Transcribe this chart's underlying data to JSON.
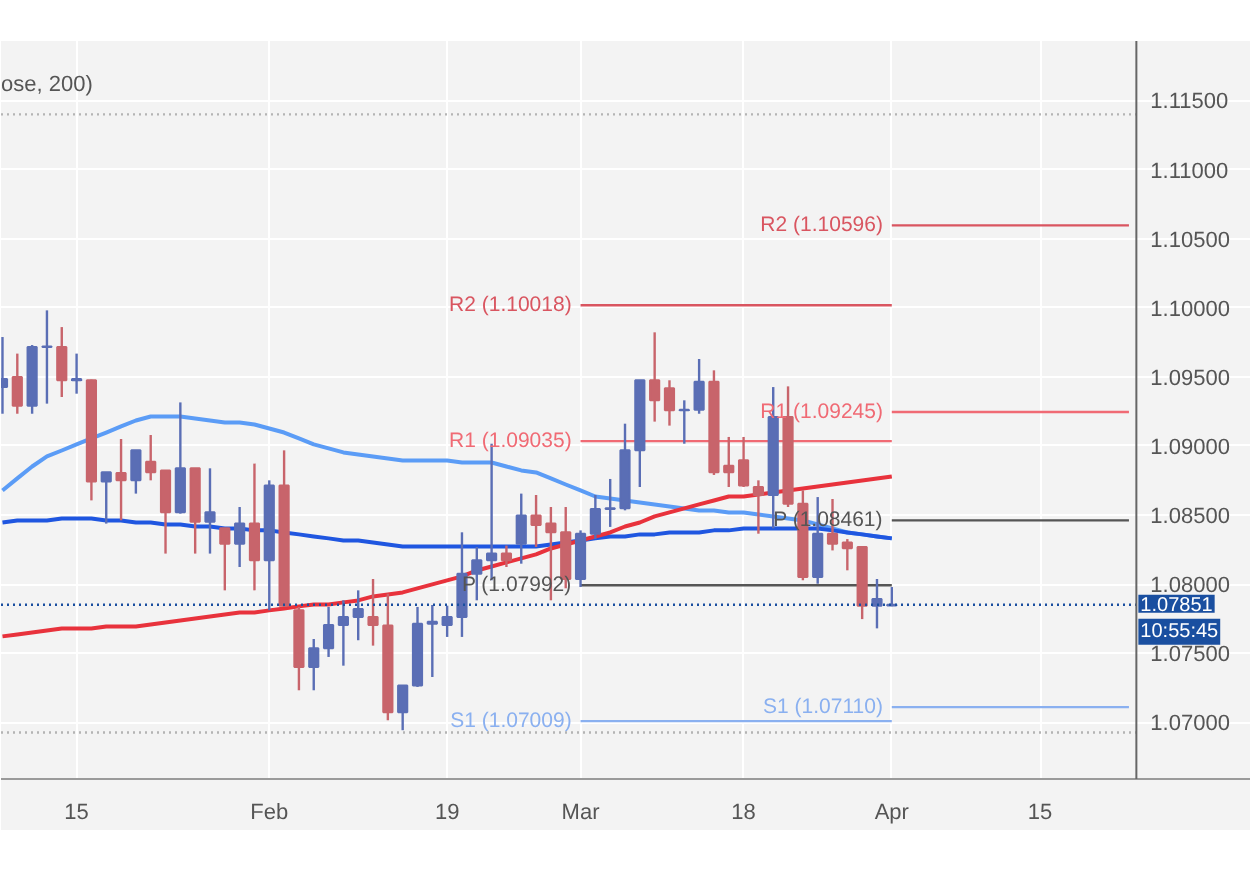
{
  "chart_data": {
    "type": "candlestick",
    "categories": [
      null,
      null,
      null,
      null,
      null,
      "15",
      null,
      null,
      null,
      null,
      null,
      null,
      null,
      null,
      null,
      null,
      null,
      null,
      "Feb",
      null,
      null,
      null,
      null,
      null,
      null,
      null,
      null,
      null,
      null,
      null,
      "19",
      null,
      null,
      null,
      null,
      null,
      null,
      null,
      null,
      "Mar",
      null,
      null,
      null,
      null,
      null,
      null,
      null,
      null,
      null,
      null,
      "18",
      null,
      null,
      null,
      null,
      null,
      null,
      null,
      null,
      null,
      "Apr",
      null,
      null,
      null,
      null,
      null,
      null,
      null,
      null,
      null,
      "15",
      null,
      null,
      null,
      null,
      null,
      null
    ],
    "ohlc": [
      [
        1.09426,
        1.09788,
        1.09233,
        1.09484
      ],
      [
        1.09499,
        1.09668,
        1.09233,
        1.09291
      ],
      [
        1.09291,
        1.0973,
        1.09233,
        1.09716
      ],
      [
        1.09716,
        1.09981,
        1.09306,
        1.0972
      ],
      [
        1.09716,
        1.0986,
        1.09354,
        1.09475
      ],
      [
        1.09475,
        1.09668,
        1.09378,
        1.09484
      ],
      [
        1.09475,
        1.0948,
        1.08606,
        1.08742
      ],
      [
        1.08742,
        1.08809,
        1.08438,
        1.08809
      ],
      [
        1.08804,
        1.0905,
        1.08462,
        1.08751
      ],
      [
        1.08751,
        1.08968,
        1.08655,
        1.08968
      ],
      [
        1.08886,
        1.09079,
        1.08751,
        1.08809
      ],
      [
        1.08823,
        1.08823,
        1.08221,
        1.0852
      ],
      [
        1.0852,
        1.09315,
        1.0851,
        1.08838
      ],
      [
        1.08838,
        1.08838,
        1.08221,
        1.08452
      ],
      [
        1.08452,
        1.08838,
        1.08221,
        1.0852
      ],
      [
        1.08404,
        1.08404,
        1.07955,
        1.08293
      ],
      [
        1.08293,
        1.08558,
        1.08124,
        1.08438
      ],
      [
        1.08438,
        1.08872,
        1.07955,
        1.08172
      ],
      [
        1.08172,
        1.08751,
        1.07811,
        1.08713
      ],
      [
        1.08713,
        1.08968,
        1.07835,
        1.07844
      ],
      [
        1.07811,
        1.07835,
        1.07232,
        1.07401
      ],
      [
        1.07401,
        1.07603,
        1.07232,
        1.07536
      ],
      [
        1.07536,
        1.07835,
        1.07473,
        1.07705
      ],
      [
        1.07705,
        1.07883,
        1.0741,
        1.07762
      ],
      [
        1.07762,
        1.07955,
        1.07594,
        1.0782
      ],
      [
        1.07762,
        1.08037,
        1.07555,
        1.07705
      ],
      [
        1.077,
        1.07931,
        1.07015,
        1.07073
      ],
      [
        1.07073,
        1.07266,
        1.06943,
        1.07266
      ],
      [
        1.07266,
        1.07835,
        1.07256,
        1.07714
      ],
      [
        1.07714,
        1.07849,
        1.07328,
        1.07728
      ],
      [
        1.07705,
        1.07844,
        1.07618,
        1.07762
      ],
      [
        1.07762,
        1.08375,
        1.07618,
        1.08076
      ],
      [
        1.08076,
        1.08269,
        1.07883,
        1.08172
      ],
      [
        1.08172,
        1.09016,
        1.08028,
        1.08221
      ],
      [
        1.08221,
        1.08279,
        1.08124,
        1.08172
      ],
      [
        1.08293,
        1.08655,
        1.08148,
        1.08496
      ],
      [
        1.08496,
        1.08645,
        1.08269,
        1.08428
      ],
      [
        1.08438,
        1.08558,
        1.07883,
        1.08375
      ],
      [
        1.08375,
        1.08558,
        1.0797,
        1.08037
      ],
      [
        1.08037,
        1.08389,
        1.07979,
        1.08365
      ],
      [
        1.08365,
        1.08645,
        1.08327,
        1.08544
      ],
      [
        1.08544,
        1.08761,
        1.08414,
        1.08549
      ],
      [
        1.08549,
        1.09161,
        1.08534,
        1.08968
      ],
      [
        1.08968,
        1.09475,
        1.08703,
        1.09475
      ],
      [
        1.09475,
        1.09822,
        1.09176,
        1.0933
      ],
      [
        1.09417,
        1.09475,
        1.09147,
        1.09258
      ],
      [
        1.09258,
        1.0933,
        1.09016,
        1.09262
      ],
      [
        1.09262,
        1.09629,
        1.09233,
        1.09465
      ],
      [
        1.09465,
        1.09547,
        1.0879,
        1.08809
      ],
      [
        1.08857,
        1.09065,
        1.08703,
        1.08809
      ],
      [
        1.08896,
        1.09065,
        1.08703,
        1.08713
      ],
      [
        1.08703,
        1.08751,
        1.08365,
        1.08645
      ],
      [
        1.08645,
        1.09426,
        1.08404,
        1.09209
      ],
      [
        1.09209,
        1.09431,
        1.08558,
        1.08582
      ],
      [
        1.08582,
        1.08679,
        1.08028,
        1.08052
      ],
      [
        1.08052,
        1.0863,
        1.08003,
        1.08365
      ],
      [
        1.08365,
        1.08616,
        1.08244,
        1.08293
      ],
      [
        1.08302,
        1.08326,
        1.081,
        1.08259
      ],
      [
        1.08268,
        1.08268,
        1.07747,
        1.07844
      ],
      [
        1.07844,
        1.08037,
        1.0768,
        1.07892
      ],
      [
        1.07845,
        1.07979,
        1.0784,
        1.07851
      ],
      null,
      null,
      null,
      null,
      null,
      null,
      null,
      null,
      null,
      null,
      null,
      null,
      null,
      null,
      null,
      null
    ],
    "series": [
      {
        "type": "line",
        "color": "#5b9cf6",
        "values": [
          1.08678,
          1.08765,
          1.08851,
          1.08924,
          1.08967,
          1.09011,
          1.09054,
          1.09097,
          1.09141,
          1.09184,
          1.09213,
          1.09213,
          1.09213,
          1.09199,
          1.09184,
          1.0917,
          1.0917,
          1.09155,
          1.09126,
          1.09097,
          1.09054,
          1.09011,
          1.08982,
          1.08953,
          1.08938,
          1.08924,
          1.08909,
          1.08895,
          1.08895,
          1.08895,
          1.08895,
          1.0888,
          1.0888,
          1.0888,
          1.08851,
          1.08823,
          1.08808,
          1.08765,
          1.08721,
          1.08678,
          1.08634,
          1.0862,
          1.08605,
          1.08591,
          1.08577,
          1.08562,
          1.08548,
          1.08533,
          1.08533,
          1.08519,
          1.08519,
          1.08504,
          1.0849,
          1.08475,
          1.08461,
          1.08432,
          1.08403,
          1.08374,
          1.0836,
          1.08345,
          1.08331,
          null,
          null,
          null,
          null,
          null,
          null,
          null,
          null,
          null,
          null,
          null,
          null,
          null,
          null,
          null,
          null
        ]
      },
      {
        "type": "line",
        "color": "#1f56e0",
        "values": [
          1.08446,
          1.08461,
          1.08461,
          1.08461,
          1.08475,
          1.08475,
          1.08475,
          1.08461,
          1.08461,
          1.08446,
          1.08446,
          1.08432,
          1.08432,
          1.08417,
          1.08417,
          1.08403,
          1.08403,
          1.08389,
          1.08389,
          1.08374,
          1.0836,
          1.08345,
          1.08331,
          1.08316,
          1.08316,
          1.08302,
          1.08287,
          1.08273,
          1.08273,
          1.08273,
          1.08273,
          1.08273,
          1.08273,
          1.08273,
          1.08273,
          1.08273,
          1.08273,
          1.08287,
          1.08302,
          1.08316,
          1.08331,
          1.08345,
          1.08345,
          1.0836,
          1.0836,
          1.08374,
          1.08374,
          1.08374,
          1.08389,
          1.08389,
          1.08403,
          1.08403,
          1.08403,
          1.08403,
          1.08403,
          1.08403,
          1.08389,
          1.08374,
          1.0836,
          1.08345,
          1.08331,
          null,
          null,
          null,
          null,
          null,
          null,
          null,
          null,
          null,
          null,
          null,
          null,
          null,
          null,
          null,
          null
        ]
      },
      {
        "type": "line",
        "color": "#e8323c",
        "values": [
          1.07622,
          1.07636,
          1.0765,
          1.07665,
          1.07679,
          1.07679,
          1.07679,
          1.07694,
          1.07694,
          1.07694,
          1.07708,
          1.07723,
          1.07737,
          1.07752,
          1.07766,
          1.07781,
          1.07795,
          1.07795,
          1.0781,
          1.07824,
          1.07839,
          1.07853,
          1.07853,
          1.07868,
          1.07882,
          1.07911,
          1.07925,
          1.0794,
          1.07969,
          1.07998,
          1.08027,
          1.08056,
          1.08099,
          1.08128,
          1.08157,
          1.08186,
          1.08215,
          1.08258,
          1.08287,
          1.08316,
          1.08345,
          1.08374,
          1.08417,
          1.08446,
          1.0849,
          1.08519,
          1.08548,
          1.08577,
          1.08605,
          1.08634,
          1.08634,
          1.08649,
          1.08663,
          1.08678,
          1.08692,
          1.08707,
          1.08721,
          1.08736,
          1.0875,
          1.08765,
          1.08779,
          null,
          null,
          null,
          null,
          null,
          null,
          null,
          null,
          null,
          null,
          null,
          null,
          null,
          null,
          null,
          null
        ]
      },
      {
        "type": "line",
        "name": "R2 (1.10018)",
        "color": "#d95560",
        "values": [
          null,
          null,
          null,
          null,
          null,
          null,
          null,
          null,
          null,
          null,
          null,
          null,
          null,
          null,
          null,
          null,
          null,
          null,
          null,
          null,
          null,
          null,
          null,
          null,
          null,
          null,
          null,
          null,
          null,
          null,
          null,
          null,
          null,
          null,
          null,
          null,
          null,
          null,
          null,
          1.10018,
          1.10018,
          1.10018,
          1.10018,
          1.10018,
          1.10018,
          1.10018,
          1.10018,
          1.10018,
          1.10018,
          1.10018,
          1.10018,
          1.10018,
          1.10018,
          1.10018,
          1.10018,
          1.10018,
          1.10018,
          1.10018,
          1.10018,
          1.10018,
          1.10018,
          null,
          null,
          null,
          null,
          null,
          null,
          null,
          null,
          null,
          null,
          null,
          null,
          null,
          null,
          null,
          null
        ]
      },
      {
        "type": "line",
        "name": "R1 (1.09035)",
        "color": "#f06a74",
        "values": [
          null,
          null,
          null,
          null,
          null,
          null,
          null,
          null,
          null,
          null,
          null,
          null,
          null,
          null,
          null,
          null,
          null,
          null,
          null,
          null,
          null,
          null,
          null,
          null,
          null,
          null,
          null,
          null,
          null,
          null,
          null,
          null,
          null,
          null,
          null,
          null,
          null,
          null,
          null,
          1.09035,
          1.09035,
          1.09035,
          1.09035,
          1.09035,
          1.09035,
          1.09035,
          1.09035,
          1.09035,
          1.09035,
          1.09035,
          1.09035,
          1.09035,
          1.09035,
          1.09035,
          1.09035,
          1.09035,
          1.09035,
          1.09035,
          1.09035,
          1.09035,
          1.09035,
          null,
          null,
          null,
          null,
          null,
          null,
          null,
          null,
          null,
          null,
          null,
          null,
          null,
          null,
          null,
          null
        ]
      },
      {
        "type": "line",
        "name": "P (1.07992)",
        "color": "#555555",
        "values": [
          null,
          null,
          null,
          null,
          null,
          null,
          null,
          null,
          null,
          null,
          null,
          null,
          null,
          null,
          null,
          null,
          null,
          null,
          null,
          null,
          null,
          null,
          null,
          null,
          null,
          null,
          null,
          null,
          null,
          null,
          null,
          null,
          null,
          null,
          null,
          null,
          null,
          null,
          null,
          1.07992,
          1.07992,
          1.07992,
          1.07992,
          1.07992,
          1.07992,
          1.07992,
          1.07992,
          1.07992,
          1.07992,
          1.07992,
          1.07992,
          1.07992,
          1.07992,
          1.07992,
          1.07992,
          1.07992,
          1.07992,
          1.07992,
          1.07992,
          1.07992,
          1.07992,
          null,
          null,
          null,
          null,
          null,
          null,
          null,
          null,
          null,
          null,
          null,
          null,
          null,
          null,
          null,
          null
        ]
      },
      {
        "type": "line",
        "name": "S1 (1.07009)",
        "color": "#8ab0f0",
        "values": [
          null,
          null,
          null,
          null,
          null,
          null,
          null,
          null,
          null,
          null,
          null,
          null,
          null,
          null,
          null,
          null,
          null,
          null,
          null,
          null,
          null,
          null,
          null,
          null,
          null,
          null,
          null,
          null,
          null,
          null,
          null,
          null,
          null,
          null,
          null,
          null,
          null,
          null,
          null,
          1.07009,
          1.07009,
          1.07009,
          1.07009,
          1.07009,
          1.07009,
          1.07009,
          1.07009,
          1.07009,
          1.07009,
          1.07009,
          1.07009,
          1.07009,
          1.07009,
          1.07009,
          1.07009,
          1.07009,
          1.07009,
          1.07009,
          1.07009,
          1.07009,
          1.07009,
          null,
          null,
          null,
          null,
          null,
          null,
          null,
          null,
          null,
          null,
          null,
          null,
          null,
          null,
          null,
          null
        ]
      },
      {
        "type": "line",
        "name": "R2 (1.10596)",
        "color": "#d95560",
        "values": [
          null,
          null,
          null,
          null,
          null,
          null,
          null,
          null,
          null,
          null,
          null,
          null,
          null,
          null,
          null,
          null,
          null,
          null,
          null,
          null,
          null,
          null,
          null,
          null,
          null,
          null,
          null,
          null,
          null,
          null,
          null,
          null,
          null,
          null,
          null,
          null,
          null,
          null,
          null,
          null,
          null,
          null,
          null,
          null,
          null,
          null,
          null,
          null,
          null,
          null,
          null,
          null,
          null,
          null,
          null,
          null,
          null,
          null,
          null,
          null,
          1.10596,
          1.10596,
          1.10596,
          1.10596,
          1.10596,
          1.10596,
          1.10596,
          1.10596,
          1.10596,
          1.10596,
          1.10596,
          1.10596,
          1.10596,
          1.10596,
          1.10596,
          1.10596,
          1.10596
        ]
      },
      {
        "type": "line",
        "name": "R1 (1.09245)",
        "color": "#f06a74",
        "values": [
          null,
          null,
          null,
          null,
          null,
          null,
          null,
          null,
          null,
          null,
          null,
          null,
          null,
          null,
          null,
          null,
          null,
          null,
          null,
          null,
          null,
          null,
          null,
          null,
          null,
          null,
          null,
          null,
          null,
          null,
          null,
          null,
          null,
          null,
          null,
          null,
          null,
          null,
          null,
          null,
          null,
          null,
          null,
          null,
          null,
          null,
          null,
          null,
          null,
          null,
          null,
          null,
          null,
          null,
          null,
          null,
          null,
          null,
          null,
          null,
          1.09245,
          1.09245,
          1.09245,
          1.09245,
          1.09245,
          1.09245,
          1.09245,
          1.09245,
          1.09245,
          1.09245,
          1.09245,
          1.09245,
          1.09245,
          1.09245,
          1.09245,
          1.09245,
          1.09245
        ]
      },
      {
        "type": "line",
        "name": "P (1.08461)",
        "color": "#555555",
        "values": [
          null,
          null,
          null,
          null,
          null,
          null,
          null,
          null,
          null,
          null,
          null,
          null,
          null,
          null,
          null,
          null,
          null,
          null,
          null,
          null,
          null,
          null,
          null,
          null,
          null,
          null,
          null,
          null,
          null,
          null,
          null,
          null,
          null,
          null,
          null,
          null,
          null,
          null,
          null,
          null,
          null,
          null,
          null,
          null,
          null,
          null,
          null,
          null,
          null,
          null,
          null,
          null,
          null,
          null,
          null,
          null,
          null,
          null,
          null,
          null,
          1.08461,
          1.08461,
          1.08461,
          1.08461,
          1.08461,
          1.08461,
          1.08461,
          1.08461,
          1.08461,
          1.08461,
          1.08461,
          1.08461,
          1.08461,
          1.08461,
          1.08461,
          1.08461,
          1.08461
        ]
      },
      {
        "type": "line",
        "name": "S1 (1.07110)",
        "color": "#8ab0f0",
        "values": [
          null,
          null,
          null,
          null,
          null,
          null,
          null,
          null,
          null,
          null,
          null,
          null,
          null,
          null,
          null,
          null,
          null,
          null,
          null,
          null,
          null,
          null,
          null,
          null,
          null,
          null,
          null,
          null,
          null,
          null,
          null,
          null,
          null,
          null,
          null,
          null,
          null,
          null,
          null,
          null,
          null,
          null,
          null,
          null,
          null,
          null,
          null,
          null,
          null,
          null,
          null,
          null,
          null,
          null,
          null,
          null,
          null,
          null,
          null,
          null,
          1.0711,
          1.0711,
          1.0711,
          1.0711,
          1.0711,
          1.0711,
          1.0711,
          1.0711,
          1.0711,
          1.0711,
          1.0711,
          1.0711,
          1.0711,
          1.0711,
          1.0711,
          1.0711,
          1.0711
        ]
      }
    ],
    "ylim": [
      1.0659,
      1.1193
    ],
    "yticks": [
      {
        "value": 1.07,
        "label": "1.07000"
      },
      {
        "value": 1.075,
        "label": "1.07500"
      },
      {
        "value": 1.08,
        "label": "1.08000"
      },
      {
        "value": 1.085,
        "label": "1.08500"
      },
      {
        "value": 1.09,
        "label": "1.09000"
      },
      {
        "value": 1.095,
        "label": "1.09500"
      },
      {
        "value": 1.1,
        "label": "1.10000"
      },
      {
        "value": 1.105,
        "label": "1.10500"
      },
      {
        "value": 1.11,
        "label": "1.11000"
      },
      {
        "value": 1.115,
        "label": "1.11500"
      }
    ],
    "ref_lines": [
      {
        "axis": "y",
        "value": 1.07851,
        "label": "1.07851",
        "color": "#1a4fa0",
        "line_style": "dotted"
      },
      {
        "axis": "y",
        "value": 1.11399,
        "color": "#b4b4b4",
        "line_style": "dotted"
      },
      {
        "axis": "y",
        "value": 1.06927,
        "color": "#b4b4b4",
        "line_style": "dotted"
      }
    ],
    "annotations": [
      "ose, 200)",
      "10:55:45"
    ],
    "grid": true
  }
}
